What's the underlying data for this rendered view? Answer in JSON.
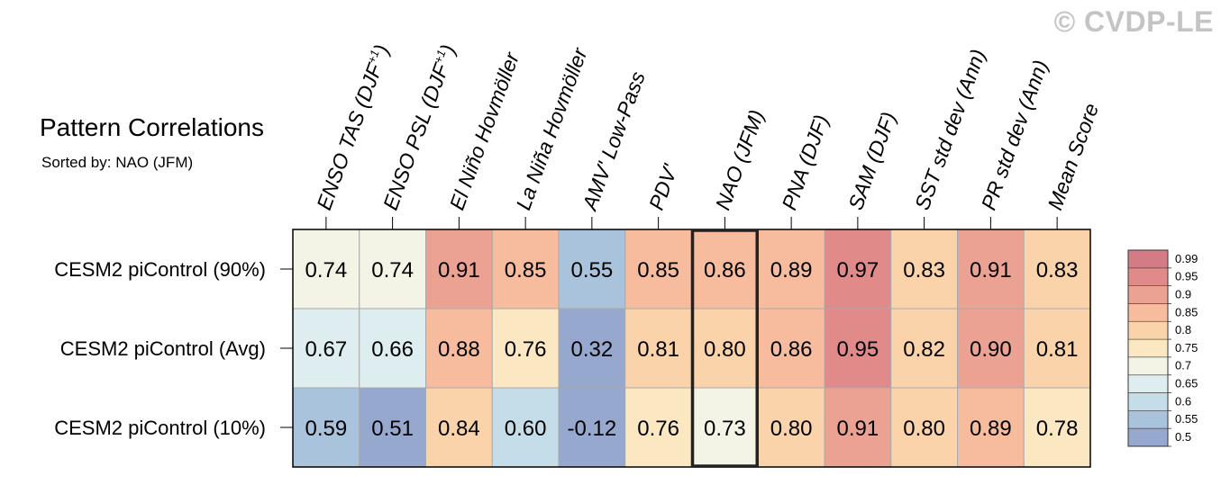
{
  "watermark": "© CVDP-LE",
  "chart_data": {
    "type": "heatmap",
    "title": "Pattern Correlations",
    "subtitle": "Sorted by: NAO (JFM)",
    "columns": [
      "ENSO TAS (DJF+1)",
      "ENSO PSL (DJF+1)",
      "El Niño Hovmöller",
      "La Niña Hovmöller",
      "AMV' Low-Pass",
      "PDV'",
      "NAO (JFM)",
      "PNA (DJF)",
      "SAM (DJF)",
      "SST std dev (Ann)",
      "PR std dev (Ann)",
      "Mean Score"
    ],
    "column_labels": [
      {
        "base": "ENSO TAS (DJF",
        "sup": "+1",
        "end": ")"
      },
      {
        "base": "ENSO PSL (DJF",
        "sup": "+1",
        "end": ")"
      },
      {
        "base": "El Niño Hovmöller"
      },
      {
        "base": "La Niña Hovmöller"
      },
      {
        "base": "AMV' Low-Pass"
      },
      {
        "base": "PDV'"
      },
      {
        "base": "NAO (JFM)"
      },
      {
        "base": "PNA (DJF)"
      },
      {
        "base": "SAM (DJF)"
      },
      {
        "base": "SST std dev (Ann)"
      },
      {
        "base": "PR std dev (Ann)"
      },
      {
        "base": "Mean Score"
      }
    ],
    "rows": [
      "CESM2 piControl (90%)",
      "CESM2 piControl (Avg)",
      "CESM2 piControl (10%)"
    ],
    "values": [
      [
        "0.74",
        "0.74",
        "0.91",
        "0.85",
        "0.55",
        "0.85",
        "0.86",
        "0.89",
        "0.97",
        "0.83",
        "0.91",
        "0.83"
      ],
      [
        "0.67",
        "0.66",
        "0.88",
        "0.76",
        "0.32",
        "0.81",
        "0.80",
        "0.86",
        "0.95",
        "0.82",
        "0.90",
        "0.81"
      ],
      [
        "0.59",
        "0.51",
        "0.84",
        "0.60",
        "-0.12",
        "0.76",
        "0.73",
        "0.80",
        "0.91",
        "0.80",
        "0.89",
        "0.78"
      ]
    ],
    "highlighted_column": "NAO (JFM)",
    "colorbar": {
      "labels": [
        "0.99",
        "0.95",
        "0.9",
        "0.85",
        "0.8",
        "0.75",
        "0.7",
        "0.65",
        "0.6",
        "0.55",
        "0.5"
      ],
      "colors": [
        "#d47c86",
        "#e08b8a",
        "#eca292",
        "#f7bb9d",
        "#fbd3ab",
        "#fce7c3",
        "#f3f3e6",
        "#ddedf0",
        "#c5dde9",
        "#a8c3db",
        "#97a8cf"
      ],
      "bins": [
        {
          "min": 0.99,
          "color": "#d47c86"
        },
        {
          "min": 0.95,
          "color": "#e08b8a"
        },
        {
          "min": 0.9,
          "color": "#eca292"
        },
        {
          "min": 0.85,
          "color": "#f7bb9d"
        },
        {
          "min": 0.8,
          "color": "#fbd3ab"
        },
        {
          "min": 0.75,
          "color": "#fce7c3"
        },
        {
          "min": 0.7,
          "color": "#f3f3e6"
        },
        {
          "min": 0.65,
          "color": "#ddedf0"
        },
        {
          "min": 0.6,
          "color": "#c5dde9"
        },
        {
          "min": 0.55,
          "color": "#a8c3db"
        },
        {
          "min": -1,
          "color": "#97a8cf"
        }
      ]
    }
  }
}
